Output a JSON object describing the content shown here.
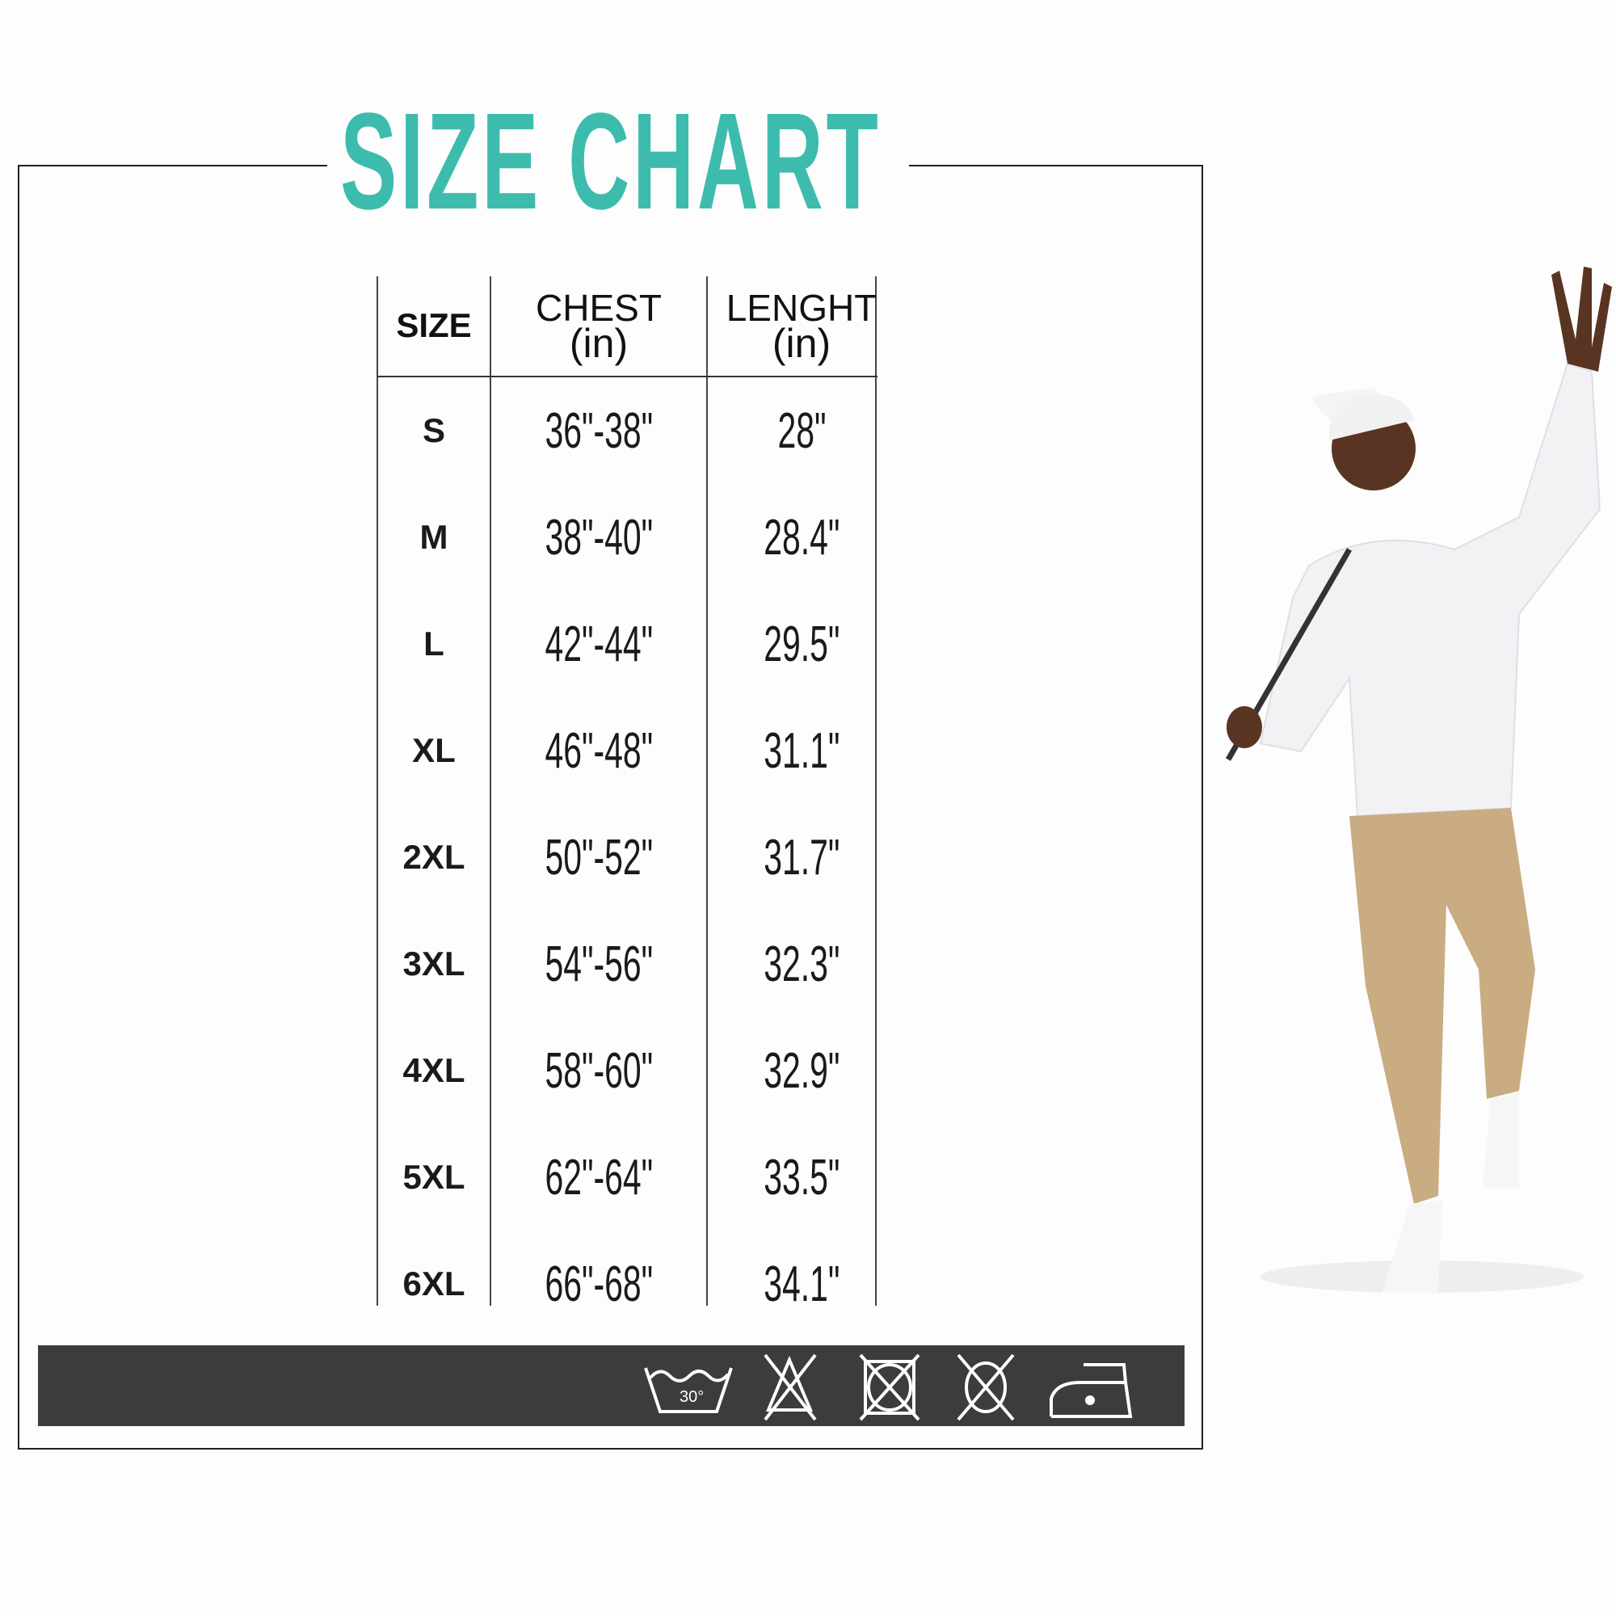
{
  "title": "SIZE CHART",
  "colors": {
    "title": "#3dbcae",
    "care_bar": "#3d3b3e"
  },
  "table": {
    "headers": [
      {
        "label": "SIZE",
        "unit": ""
      },
      {
        "label": "CHEST",
        "unit": "(in)"
      },
      {
        "label": "LENGHT",
        "unit": "(in)"
      }
    ],
    "rows": [
      {
        "size": "S",
        "chest": "36\"-38\"",
        "length": "28\""
      },
      {
        "size": "M",
        "chest": "38\"-40\"",
        "length": "28.4\""
      },
      {
        "size": "L",
        "chest": "42\"-44\"",
        "length": "29.5\""
      },
      {
        "size": "XL",
        "chest": "46\"-48\"",
        "length": "31.1\""
      },
      {
        "size": "2XL",
        "chest": "50\"-52\"",
        "length": "31.7\""
      },
      {
        "size": "3XL",
        "chest": "54\"-56\"",
        "length": "32.3\""
      },
      {
        "size": "4XL",
        "chest": "58\"-60\"",
        "length": "32.9\""
      },
      {
        "size": "5XL",
        "chest": "62\"-64\"",
        "length": "33.5\""
      },
      {
        "size": "6XL",
        "chest": "66\"-68\"",
        "length": "34.1\""
      }
    ]
  },
  "care_icons": [
    {
      "icon": "wash-30-icon",
      "label": "30°"
    },
    {
      "icon": "do-not-bleach-icon"
    },
    {
      "icon": "do-not-tumble-dry-icon"
    },
    {
      "icon": "do-not-dry-clean-icon"
    },
    {
      "icon": "iron-low-heat-icon"
    }
  ]
}
